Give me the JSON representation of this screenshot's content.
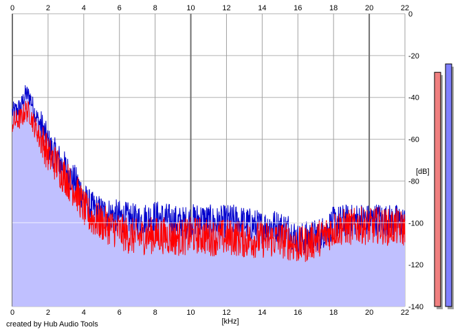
{
  "chart_data": {
    "type": "area",
    "title": "",
    "xlabel": "[kHz]",
    "ylabel": "[dB]",
    "xlim": [
      0,
      22
    ],
    "ylim": [
      -140,
      0
    ],
    "x_ticks": [
      0,
      2,
      4,
      6,
      8,
      10,
      12,
      14,
      16,
      18,
      20,
      22
    ],
    "y_ticks": [
      0,
      -20,
      -40,
      -60,
      -80,
      -100,
      -120,
      -140
    ],
    "grid": true,
    "legend": "none",
    "series": [
      {
        "color": "#0000cc",
        "fill": "#c0c0ff",
        "x": [
          0,
          0.25,
          0.5,
          0.75,
          1,
          1.25,
          1.5,
          1.75,
          2,
          2.25,
          2.5,
          2.75,
          3,
          3.25,
          3.5,
          3.75,
          4,
          4.25,
          4.5,
          4.75,
          5,
          5.5,
          6,
          6.5,
          7,
          7.5,
          8,
          8.5,
          9,
          9.5,
          10,
          10.5,
          11,
          11.5,
          12,
          12.5,
          13,
          13.5,
          14,
          14.5,
          15,
          15.5,
          16,
          16.5,
          17,
          17.5,
          18,
          18.5,
          19,
          19.5,
          20,
          20.5,
          21,
          21.5,
          22
        ],
        "values": [
          -47,
          -46,
          -44,
          -38,
          -40,
          -47,
          -52,
          -56,
          -62,
          -66,
          -68,
          -72,
          -74,
          -78,
          -80,
          -83,
          -88,
          -91,
          -93,
          -94,
          -95,
          -96,
          -97,
          -98,
          -99,
          -98,
          -97,
          -98,
          -99,
          -100,
          -99,
          -98,
          -99,
          -100,
          -99,
          -99,
          -100,
          -101,
          -102,
          -101,
          -102,
          -103,
          -108,
          -107,
          -106,
          -104,
          -100,
          -99,
          -99,
          -98,
          -99,
          -98,
          -99,
          -99,
          -100
        ]
      },
      {
        "color": "#ff0000",
        "x": [
          0,
          0.25,
          0.5,
          0.75,
          1,
          1.25,
          1.5,
          1.75,
          2,
          2.25,
          2.5,
          2.75,
          3,
          3.25,
          3.5,
          3.75,
          4,
          4.25,
          4.5,
          4.75,
          5,
          5.5,
          6,
          6.5,
          7,
          7.5,
          8,
          8.5,
          9,
          9.5,
          10,
          10.5,
          11,
          11.5,
          12,
          12.5,
          13,
          13.5,
          14,
          14.5,
          15,
          15.5,
          16,
          16.5,
          17,
          17.5,
          18,
          18.5,
          19,
          19.5,
          20,
          20.5,
          21,
          21.5,
          22
        ],
        "values": [
          -52,
          -51,
          -50,
          -46,
          -48,
          -54,
          -58,
          -62,
          -67,
          -70,
          -72,
          -76,
          -78,
          -82,
          -84,
          -88,
          -93,
          -96,
          -98,
          -99,
          -100,
          -102,
          -104,
          -106,
          -107,
          -106,
          -106,
          -106,
          -107,
          -107,
          -106,
          -106,
          -107,
          -107,
          -107,
          -107,
          -108,
          -108,
          -108,
          -108,
          -108,
          -109,
          -111,
          -110,
          -108,
          -106,
          -103,
          -102,
          -102,
          -101,
          -102,
          -101,
          -102,
          -102,
          -103
        ]
      }
    ],
    "level_meters": [
      {
        "color": "#f08080",
        "value": -28
      },
      {
        "color": "#8080ff",
        "value": -24
      }
    ]
  },
  "footer": {
    "credit": "created by Hub Audio Tools"
  }
}
